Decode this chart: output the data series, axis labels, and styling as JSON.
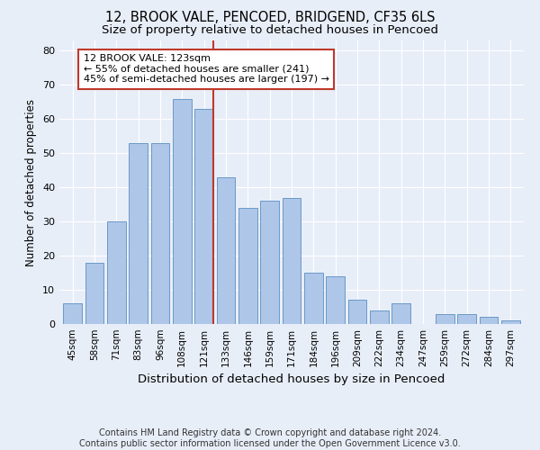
{
  "title_line1": "12, BROOK VALE, PENCOED, BRIDGEND, CF35 6LS",
  "title_line2": "Size of property relative to detached houses in Pencoed",
  "xlabel": "Distribution of detached houses by size in Pencoed",
  "ylabel": "Number of detached properties",
  "footnote": "Contains HM Land Registry data © Crown copyright and database right 2024.\nContains public sector information licensed under the Open Government Licence v3.0.",
  "categories": [
    "45sqm",
    "58sqm",
    "71sqm",
    "83sqm",
    "96sqm",
    "108sqm",
    "121sqm",
    "133sqm",
    "146sqm",
    "159sqm",
    "171sqm",
    "184sqm",
    "196sqm",
    "209sqm",
    "222sqm",
    "234sqm",
    "247sqm",
    "259sqm",
    "272sqm",
    "284sqm",
    "297sqm"
  ],
  "values": [
    6,
    18,
    30,
    53,
    53,
    66,
    63,
    43,
    34,
    36,
    37,
    15,
    14,
    7,
    4,
    6,
    0,
    3,
    3,
    2,
    1
  ],
  "bar_color": "#aec6e8",
  "bar_edge_color": "#5a8fc2",
  "vline_color": "#c0392b",
  "annotation_text": "12 BROOK VALE: 123sqm\n← 55% of detached houses are smaller (241)\n45% of semi-detached houses are larger (197) →",
  "annotation_box_color": "#ffffff",
  "annotation_box_edge": "#c0392b",
  "ylim": [
    0,
    83
  ],
  "yticks": [
    0,
    10,
    20,
    30,
    40,
    50,
    60,
    70,
    80
  ],
  "background_color": "#e8eef8",
  "grid_color": "#ffffff",
  "title_fontsize": 10.5,
  "subtitle_fontsize": 9.5,
  "tick_fontsize": 7.5,
  "ylabel_fontsize": 8.5,
  "xlabel_fontsize": 9.5,
  "footnote_fontsize": 7.0,
  "ann_fontsize": 8.0
}
